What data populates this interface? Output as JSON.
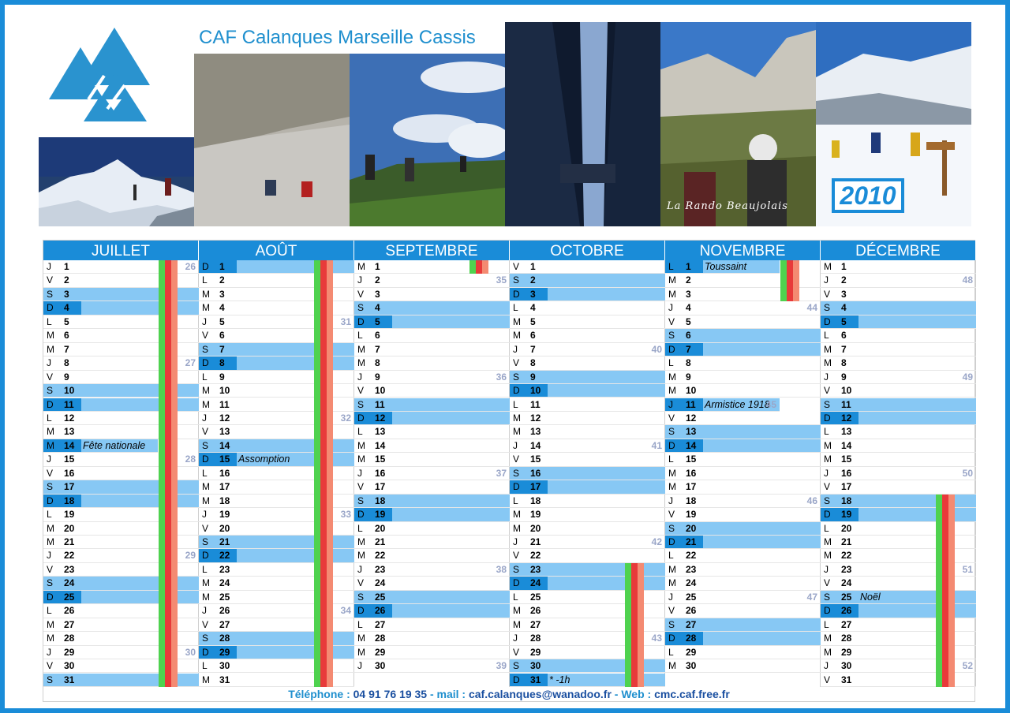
{
  "header": {
    "title": "CAF Calanques Marseille Cassis",
    "year": "2010",
    "caption": "La Rando Beaujolais"
  },
  "colors": {
    "accent": "#1a8cd8",
    "sat": "#87c8f4",
    "vac_green": "#4fd24f",
    "vac_red": "#e83a3a",
    "vac_salmon": "#f48a72"
  },
  "months": [
    {
      "name": "JUILLET",
      "days": [
        {
          "l": "J",
          "n": "1",
          "wk": "26"
        },
        {
          "l": "V",
          "n": "2"
        },
        {
          "l": "S",
          "n": "3"
        },
        {
          "l": "D",
          "n": "4"
        },
        {
          "l": "L",
          "n": "5"
        },
        {
          "l": "M",
          "n": "6"
        },
        {
          "l": "M",
          "n": "7"
        },
        {
          "l": "J",
          "n": "8",
          "wk": "27"
        },
        {
          "l": "V",
          "n": "9"
        },
        {
          "l": "S",
          "n": "10"
        },
        {
          "l": "D",
          "n": "11"
        },
        {
          "l": "L",
          "n": "12"
        },
        {
          "l": "M",
          "n": "13"
        },
        {
          "l": "M",
          "n": "14",
          "hol": "Fête nationale"
        },
        {
          "l": "J",
          "n": "15",
          "wk": "28"
        },
        {
          "l": "V",
          "n": "16"
        },
        {
          "l": "S",
          "n": "17"
        },
        {
          "l": "D",
          "n": "18"
        },
        {
          "l": "L",
          "n": "19"
        },
        {
          "l": "M",
          "n": "20"
        },
        {
          "l": "M",
          "n": "21"
        },
        {
          "l": "J",
          "n": "22",
          "wk": "29"
        },
        {
          "l": "V",
          "n": "23"
        },
        {
          "l": "S",
          "n": "24"
        },
        {
          "l": "D",
          "n": "25"
        },
        {
          "l": "L",
          "n": "26"
        },
        {
          "l": "M",
          "n": "27"
        },
        {
          "l": "M",
          "n": "28"
        },
        {
          "l": "J",
          "n": "29",
          "wk": "30"
        },
        {
          "l": "V",
          "n": "30"
        },
        {
          "l": "S",
          "n": "31"
        }
      ]
    },
    {
      "name": "AOÛT",
      "days": [
        {
          "l": "D",
          "n": "1"
        },
        {
          "l": "L",
          "n": "2"
        },
        {
          "l": "M",
          "n": "3"
        },
        {
          "l": "M",
          "n": "4"
        },
        {
          "l": "J",
          "n": "5",
          "wk": "31"
        },
        {
          "l": "V",
          "n": "6"
        },
        {
          "l": "S",
          "n": "7"
        },
        {
          "l": "D",
          "n": "8"
        },
        {
          "l": "L",
          "n": "9"
        },
        {
          "l": "M",
          "n": "10"
        },
        {
          "l": "M",
          "n": "11"
        },
        {
          "l": "J",
          "n": "12",
          "wk": "32"
        },
        {
          "l": "V",
          "n": "13"
        },
        {
          "l": "S",
          "n": "14"
        },
        {
          "l": "D",
          "n": "15",
          "hol": "Assomption"
        },
        {
          "l": "L",
          "n": "16"
        },
        {
          "l": "M",
          "n": "17"
        },
        {
          "l": "M",
          "n": "18"
        },
        {
          "l": "J",
          "n": "19",
          "wk": "33"
        },
        {
          "l": "V",
          "n": "20"
        },
        {
          "l": "S",
          "n": "21"
        },
        {
          "l": "D",
          "n": "22"
        },
        {
          "l": "L",
          "n": "23"
        },
        {
          "l": "M",
          "n": "24"
        },
        {
          "l": "M",
          "n": "25"
        },
        {
          "l": "J",
          "n": "26",
          "wk": "34"
        },
        {
          "l": "V",
          "n": "27"
        },
        {
          "l": "S",
          "n": "28"
        },
        {
          "l": "D",
          "n": "29"
        },
        {
          "l": "L",
          "n": "30"
        },
        {
          "l": "M",
          "n": "31"
        }
      ]
    },
    {
      "name": "SEPTEMBRE",
      "days": [
        {
          "l": "M",
          "n": "1"
        },
        {
          "l": "J",
          "n": "2",
          "wk": "35"
        },
        {
          "l": "V",
          "n": "3"
        },
        {
          "l": "S",
          "n": "4"
        },
        {
          "l": "D",
          "n": "5"
        },
        {
          "l": "L",
          "n": "6"
        },
        {
          "l": "M",
          "n": "7"
        },
        {
          "l": "M",
          "n": "8"
        },
        {
          "l": "J",
          "n": "9",
          "wk": "36"
        },
        {
          "l": "V",
          "n": "10"
        },
        {
          "l": "S",
          "n": "11"
        },
        {
          "l": "D",
          "n": "12"
        },
        {
          "l": "L",
          "n": "13"
        },
        {
          "l": "M",
          "n": "14"
        },
        {
          "l": "M",
          "n": "15"
        },
        {
          "l": "J",
          "n": "16",
          "wk": "37"
        },
        {
          "l": "V",
          "n": "17"
        },
        {
          "l": "S",
          "n": "18"
        },
        {
          "l": "D",
          "n": "19"
        },
        {
          "l": "L",
          "n": "20"
        },
        {
          "l": "M",
          "n": "21"
        },
        {
          "l": "M",
          "n": "22"
        },
        {
          "l": "J",
          "n": "23",
          "wk": "38"
        },
        {
          "l": "V",
          "n": "24"
        },
        {
          "l": "S",
          "n": "25"
        },
        {
          "l": "D",
          "n": "26"
        },
        {
          "l": "L",
          "n": "27"
        },
        {
          "l": "M",
          "n": "28"
        },
        {
          "l": "M",
          "n": "29"
        },
        {
          "l": "J",
          "n": "30",
          "wk": "39"
        }
      ]
    },
    {
      "name": "OCTOBRE",
      "days": [
        {
          "l": "V",
          "n": "1"
        },
        {
          "l": "S",
          "n": "2"
        },
        {
          "l": "D",
          "n": "3"
        },
        {
          "l": "L",
          "n": "4"
        },
        {
          "l": "M",
          "n": "5"
        },
        {
          "l": "M",
          "n": "6"
        },
        {
          "l": "J",
          "n": "7",
          "wk": "40"
        },
        {
          "l": "V",
          "n": "8"
        },
        {
          "l": "S",
          "n": "9"
        },
        {
          "l": "D",
          "n": "10"
        },
        {
          "l": "L",
          "n": "11"
        },
        {
          "l": "M",
          "n": "12"
        },
        {
          "l": "M",
          "n": "13"
        },
        {
          "l": "J",
          "n": "14",
          "wk": "41"
        },
        {
          "l": "V",
          "n": "15"
        },
        {
          "l": "S",
          "n": "16"
        },
        {
          "l": "D",
          "n": "17"
        },
        {
          "l": "L",
          "n": "18"
        },
        {
          "l": "M",
          "n": "19"
        },
        {
          "l": "M",
          "n": "20"
        },
        {
          "l": "J",
          "n": "21",
          "wk": "42"
        },
        {
          "l": "V",
          "n": "22"
        },
        {
          "l": "S",
          "n": "23"
        },
        {
          "l": "D",
          "n": "24"
        },
        {
          "l": "L",
          "n": "25"
        },
        {
          "l": "M",
          "n": "26"
        },
        {
          "l": "M",
          "n": "27"
        },
        {
          "l": "J",
          "n": "28",
          "wk": "43"
        },
        {
          "l": "V",
          "n": "29"
        },
        {
          "l": "S",
          "n": "30"
        },
        {
          "l": "D",
          "n": "31",
          "hol": "* -1h"
        }
      ]
    },
    {
      "name": "NOVEMBRE",
      "days": [
        {
          "l": "L",
          "n": "1",
          "hol": "Toussaint"
        },
        {
          "l": "M",
          "n": "2"
        },
        {
          "l": "M",
          "n": "3"
        },
        {
          "l": "J",
          "n": "4",
          "wk": "44"
        },
        {
          "l": "V",
          "n": "5"
        },
        {
          "l": "S",
          "n": "6"
        },
        {
          "l": "D",
          "n": "7"
        },
        {
          "l": "L",
          "n": "8"
        },
        {
          "l": "M",
          "n": "9"
        },
        {
          "l": "M",
          "n": "10"
        },
        {
          "l": "J",
          "n": "11",
          "hol": "Armistice 1918",
          "wk": "45"
        },
        {
          "l": "V",
          "n": "12"
        },
        {
          "l": "S",
          "n": "13"
        },
        {
          "l": "D",
          "n": "14"
        },
        {
          "l": "L",
          "n": "15"
        },
        {
          "l": "M",
          "n": "16"
        },
        {
          "l": "M",
          "n": "17"
        },
        {
          "l": "J",
          "n": "18",
          "wk": "46"
        },
        {
          "l": "V",
          "n": "19"
        },
        {
          "l": "S",
          "n": "20"
        },
        {
          "l": "D",
          "n": "21"
        },
        {
          "l": "L",
          "n": "22"
        },
        {
          "l": "M",
          "n": "23"
        },
        {
          "l": "M",
          "n": "24"
        },
        {
          "l": "J",
          "n": "25",
          "wk": "47"
        },
        {
          "l": "V",
          "n": "26"
        },
        {
          "l": "S",
          "n": "27"
        },
        {
          "l": "D",
          "n": "28"
        },
        {
          "l": "L",
          "n": "29"
        },
        {
          "l": "M",
          "n": "30"
        }
      ]
    },
    {
      "name": "DÉCEMBRE",
      "days": [
        {
          "l": "M",
          "n": "1"
        },
        {
          "l": "J",
          "n": "2",
          "wk": "48"
        },
        {
          "l": "V",
          "n": "3"
        },
        {
          "l": "S",
          "n": "4"
        },
        {
          "l": "D",
          "n": "5"
        },
        {
          "l": "L",
          "n": "6"
        },
        {
          "l": "M",
          "n": "7"
        },
        {
          "l": "M",
          "n": "8"
        },
        {
          "l": "J",
          "n": "9",
          "wk": "49"
        },
        {
          "l": "V",
          "n": "10"
        },
        {
          "l": "S",
          "n": "11"
        },
        {
          "l": "D",
          "n": "12"
        },
        {
          "l": "L",
          "n": "13"
        },
        {
          "l": "M",
          "n": "14"
        },
        {
          "l": "M",
          "n": "15"
        },
        {
          "l": "J",
          "n": "16",
          "wk": "50"
        },
        {
          "l": "V",
          "n": "17"
        },
        {
          "l": "S",
          "n": "18"
        },
        {
          "l": "D",
          "n": "19"
        },
        {
          "l": "L",
          "n": "20"
        },
        {
          "l": "M",
          "n": "21"
        },
        {
          "l": "M",
          "n": "22"
        },
        {
          "l": "J",
          "n": "23",
          "wk": "51"
        },
        {
          "l": "V",
          "n": "24"
        },
        {
          "l": "S",
          "n": "25",
          "hol": "Noël"
        },
        {
          "l": "D",
          "n": "26"
        },
        {
          "l": "L",
          "n": "27"
        },
        {
          "l": "M",
          "n": "28"
        },
        {
          "l": "M",
          "n": "29"
        },
        {
          "l": "J",
          "n": "30",
          "wk": "52"
        },
        {
          "l": "V",
          "n": "31"
        }
      ]
    }
  ],
  "vacations": [
    {
      "month": 0,
      "from": 1,
      "to": 31
    },
    {
      "month": 1,
      "from": 1,
      "to": 31
    },
    {
      "month": 2,
      "from": 1,
      "to": 1
    },
    {
      "month": 3,
      "from": 23,
      "to": 31
    },
    {
      "month": 4,
      "from": 1,
      "to": 3
    },
    {
      "month": 5,
      "from": 18,
      "to": 31
    }
  ],
  "footer": {
    "phone_label": "Téléphone : ",
    "phone": "04 91 76 19 35",
    "mail_label": " - mail : ",
    "mail": "caf.calanques@wanadoo.fr",
    "web_label": " - Web : ",
    "web": "cmc.caf.free.fr"
  }
}
